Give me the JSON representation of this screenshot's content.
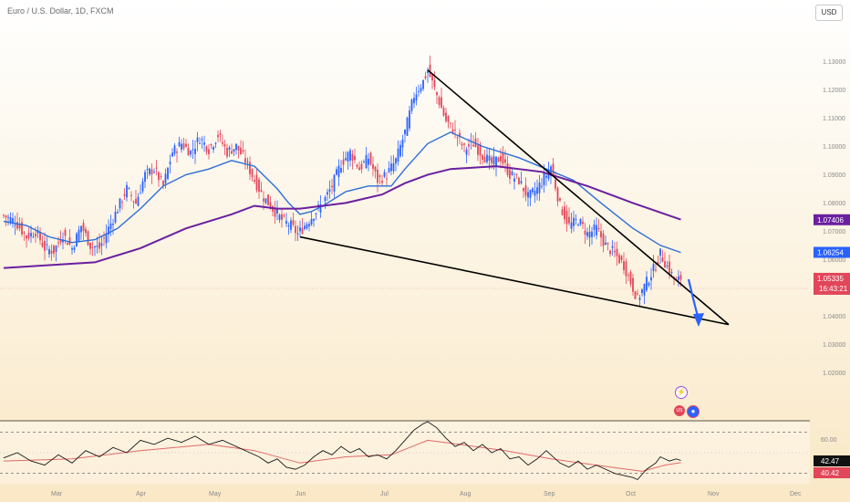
{
  "header": {
    "title": "Euro / U.S. Dollar, 1D, FXCM",
    "currency_button": "USD"
  },
  "colors": {
    "up_candle": "#2962ff",
    "down_candle": "#e2465a",
    "ma_fast": "#2f6ed8",
    "ma_slow": "#6a1fa0",
    "trendline": "#000000",
    "arrow": "#2962ff",
    "rsi_line": "#1a1a1a",
    "rsi_ma": "#e06a6a",
    "badge_slow": "#6a1fa0",
    "badge_fast": "#2962ff",
    "badge_price": "#e2465a"
  },
  "price_axis": {
    "labels": [
      "1.13000",
      "1.12000",
      "1.11000",
      "1.10000",
      "1.09000",
      "1.08000",
      "1.07000",
      "1.06000",
      "1.04000",
      "1.03000",
      "1.02000"
    ]
  },
  "badges": {
    "ma_slow": "1.07406",
    "ma_fast": "1.06254",
    "price": "1.05335",
    "countdown": "16:43:21"
  },
  "rsi_axis": {
    "label_60": "60.00",
    "rsi_value": "42.47",
    "rsi_ma_value": "40.42"
  },
  "time_axis": {
    "labels": [
      "Mar",
      "Apr",
      "May",
      "Jun",
      "Jul",
      "Aug",
      "Sep",
      "Oct",
      "Nov",
      "Dec"
    ]
  },
  "events": {
    "flash_icon": "⚡",
    "flag_icon": "US",
    "dot_icon": "●"
  },
  "chart_data": {
    "type": "candlestick",
    "title": "Euro / U.S. Dollar, 1D, FXCM",
    "ylim": [
      1.013,
      1.134
    ],
    "x_labels": [
      "Mar",
      "Apr",
      "May",
      "Jun",
      "Jul",
      "Aug",
      "Sep",
      "Oct",
      "Nov",
      "Dec"
    ],
    "price_path": [
      [
        0,
        1.0755
      ],
      [
        5,
        1.0735
      ],
      [
        10,
        1.068
      ],
      [
        14,
        1.07
      ],
      [
        18,
        1.064
      ],
      [
        22,
        1.063
      ],
      [
        26,
        1.069
      ],
      [
        30,
        1.064
      ],
      [
        34,
        1.072
      ],
      [
        38,
        1.065
      ],
      [
        42,
        1.064
      ],
      [
        46,
        1.071
      ],
      [
        50,
        1.078
      ],
      [
        54,
        1.085
      ],
      [
        58,
        1.08
      ],
      [
        62,
        1.09
      ],
      [
        66,
        1.092
      ],
      [
        70,
        1.086
      ],
      [
        74,
        1.098
      ],
      [
        78,
        1.101
      ],
      [
        82,
        1.098
      ],
      [
        86,
        1.103
      ],
      [
        90,
        1.099
      ],
      [
        94,
        1.104
      ],
      [
        98,
        1.098
      ],
      [
        102,
        1.1
      ],
      [
        106,
        1.095
      ],
      [
        110,
        1.088
      ],
      [
        114,
        1.082
      ],
      [
        118,
        1.078
      ],
      [
        122,
        1.074
      ],
      [
        126,
        1.072
      ],
      [
        129,
        1.069
      ],
      [
        132,
        1.072
      ],
      [
        136,
        1.076
      ],
      [
        140,
        1.08
      ],
      [
        144,
        1.086
      ],
      [
        148,
        1.094
      ],
      [
        152,
        1.098
      ],
      [
        156,
        1.092
      ],
      [
        160,
        1.096
      ],
      [
        164,
        1.088
      ],
      [
        168,
        1.09
      ],
      [
        172,
        1.095
      ],
      [
        176,
        1.105
      ],
      [
        180,
        1.118
      ],
      [
        184,
        1.123
      ],
      [
        186,
        1.127
      ],
      [
        190,
        1.118
      ],
      [
        194,
        1.109
      ],
      [
        198,
        1.105
      ],
      [
        202,
        1.099
      ],
      [
        206,
        1.101
      ],
      [
        210,
        1.097
      ],
      [
        214,
        1.094
      ],
      [
        218,
        1.096
      ],
      [
        222,
        1.09
      ],
      [
        226,
        1.088
      ],
      [
        230,
        1.082
      ],
      [
        234,
        1.085
      ],
      [
        238,
        1.09
      ],
      [
        240,
        1.093
      ],
      [
        244,
        1.079
      ],
      [
        248,
        1.072
      ],
      [
        252,
        1.074
      ],
      [
        256,
        1.069
      ],
      [
        260,
        1.071
      ],
      [
        264,
        1.065
      ],
      [
        268,
        1.062
      ],
      [
        272,
        1.058
      ],
      [
        276,
        1.05
      ],
      [
        278,
        1.046
      ],
      [
        282,
        1.052
      ],
      [
        286,
        1.058
      ],
      [
        288,
        1.062
      ],
      [
        292,
        1.056
      ],
      [
        295,
        1.052
      ],
      [
        297,
        1.0534
      ]
    ],
    "series": [
      {
        "name": "",
        "values": [
          [
            0,
            1.0735
          ],
          [
            10,
            1.072
          ],
          [
            20,
            1.068
          ],
          [
            30,
            1.066
          ],
          [
            40,
            1.067
          ],
          [
            50,
            1.071
          ],
          [
            60,
            1.078
          ],
          [
            70,
            1.086
          ],
          [
            80,
            1.09
          ],
          [
            90,
            1.092
          ],
          [
            100,
            1.095
          ],
          [
            110,
            1.093
          ],
          [
            120,
            1.085
          ],
          [
            125,
            1.08
          ],
          [
            130,
            1.076
          ],
          [
            135,
            1.077
          ],
          [
            140,
            1.079
          ],
          [
            150,
            1.084
          ],
          [
            160,
            1.086
          ],
          [
            170,
            1.086
          ],
          [
            176,
            1.092
          ],
          [
            186,
            1.101
          ],
          [
            196,
            1.105
          ],
          [
            210,
            1.1
          ],
          [
            226,
            1.096
          ],
          [
            238,
            1.092
          ],
          [
            250,
            1.088
          ],
          [
            262,
            1.08
          ],
          [
            276,
            1.071
          ],
          [
            288,
            1.065
          ],
          [
            297,
            1.0625
          ]
        ]
      },
      {
        "name": "",
        "values": [
          [
            0,
            1.057
          ],
          [
            20,
            1.058
          ],
          [
            40,
            1.059
          ],
          [
            60,
            1.064
          ],
          [
            80,
            1.071
          ],
          [
            100,
            1.076
          ],
          [
            110,
            1.079
          ],
          [
            120,
            1.078
          ],
          [
            130,
            1.078
          ],
          [
            150,
            1.08
          ],
          [
            166,
            1.083
          ],
          [
            176,
            1.087
          ],
          [
            186,
            1.09
          ],
          [
            196,
            1.092
          ],
          [
            216,
            1.093
          ],
          [
            236,
            1.091
          ],
          [
            256,
            1.086
          ],
          [
            276,
            1.08
          ],
          [
            297,
            1.0741
          ]
        ]
      }
    ],
    "trendlines": [
      {
        "from": [
          186,
          1.127
        ],
        "to": [
          318,
          1.037
        ]
      },
      {
        "from": [
          130,
          1.068
        ],
        "to": [
          318,
          1.037
        ]
      }
    ],
    "rsi": {
      "ylim": [
        20,
        80
      ],
      "levels": [
        70,
        30
      ],
      "rsi_path": [
        [
          0,
          45
        ],
        [
          6,
          50
        ],
        [
          12,
          42
        ],
        [
          18,
          38
        ],
        [
          24,
          48
        ],
        [
          30,
          40
        ],
        [
          36,
          52
        ],
        [
          42,
          46
        ],
        [
          48,
          55
        ],
        [
          54,
          50
        ],
        [
          60,
          62
        ],
        [
          66,
          58
        ],
        [
          72,
          64
        ],
        [
          78,
          60
        ],
        [
          84,
          66
        ],
        [
          90,
          58
        ],
        [
          96,
          62
        ],
        [
          102,
          56
        ],
        [
          108,
          50
        ],
        [
          112,
          46
        ],
        [
          116,
          40
        ],
        [
          120,
          44
        ],
        [
          124,
          36
        ],
        [
          128,
          34
        ],
        [
          132,
          38
        ],
        [
          136,
          46
        ],
        [
          140,
          52
        ],
        [
          144,
          48
        ],
        [
          148,
          56
        ],
        [
          152,
          50
        ],
        [
          156,
          54
        ],
        [
          160,
          46
        ],
        [
          164,
          48
        ],
        [
          168,
          44
        ],
        [
          172,
          52
        ],
        [
          176,
          62
        ],
        [
          180,
          72
        ],
        [
          184,
          78
        ],
        [
          186,
          80
        ],
        [
          190,
          74
        ],
        [
          194,
          64
        ],
        [
          198,
          56
        ],
        [
          202,
          60
        ],
        [
          206,
          52
        ],
        [
          210,
          58
        ],
        [
          214,
          50
        ],
        [
          218,
          54
        ],
        [
          222,
          44
        ],
        [
          226,
          46
        ],
        [
          230,
          38
        ],
        [
          234,
          44
        ],
        [
          238,
          52
        ],
        [
          240,
          48
        ],
        [
          244,
          40
        ],
        [
          248,
          36
        ],
        [
          252,
          42
        ],
        [
          256,
          34
        ],
        [
          260,
          38
        ],
        [
          264,
          34
        ],
        [
          268,
          30
        ],
        [
          272,
          28
        ],
        [
          276,
          26
        ],
        [
          278,
          24
        ],
        [
          282,
          34
        ],
        [
          286,
          40
        ],
        [
          288,
          46
        ],
        [
          292,
          42
        ],
        [
          295,
          44
        ],
        [
          297,
          42.47
        ]
      ],
      "ma_path": [
        [
          0,
          42
        ],
        [
          30,
          44
        ],
        [
          60,
          52
        ],
        [
          90,
          58
        ],
        [
          110,
          52
        ],
        [
          130,
          40
        ],
        [
          150,
          46
        ],
        [
          170,
          48
        ],
        [
          186,
          62
        ],
        [
          200,
          58
        ],
        [
          220,
          52
        ],
        [
          240,
          44
        ],
        [
          260,
          38
        ],
        [
          280,
          32
        ],
        [
          290,
          38
        ],
        [
          297,
          40.42
        ]
      ]
    }
  }
}
